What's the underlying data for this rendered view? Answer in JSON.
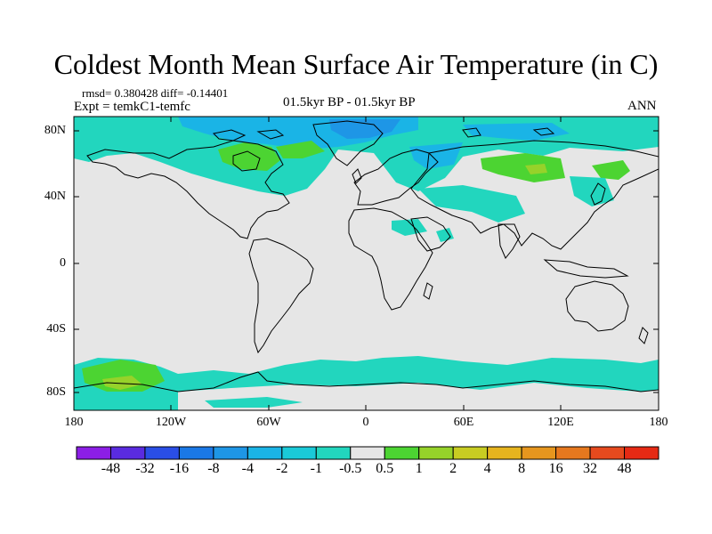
{
  "title": "Coldest Month Mean Surface Air Temperature (in C)",
  "stats": "rmsd= 0.380428 diff= -0.14401",
  "experiment": "Expt = temkC1-temfc",
  "period": "01.5kyr BP - 01.5kyr BP",
  "season": "ANN",
  "lat_labels": [
    "80N",
    "40N",
    "0",
    "40S",
    "80S"
  ],
  "lon_labels": [
    "180",
    "120W",
    "60W",
    "0",
    "60E",
    "120E",
    "180"
  ],
  "colorbar": {
    "labels": [
      "-48",
      "-32",
      "-16",
      "-8",
      "-4",
      "-2",
      "-1",
      "-0.5",
      "0.5",
      "1",
      "2",
      "4",
      "8",
      "16",
      "32",
      "48"
    ],
    "colors": [
      "#8c1ee6",
      "#5a2be0",
      "#2a4ee6",
      "#1a78e6",
      "#1e96e6",
      "#1ab4e6",
      "#1acad8",
      "#22d6be",
      "#e6e6e6",
      "#4cd432",
      "#96d22a",
      "#c8cc22",
      "#e6b41e",
      "#e6961e",
      "#e6781e",
      "#e64a1e",
      "#e62a14"
    ]
  },
  "colors": {
    "land_bg": "#e6e6e6",
    "cyan": "#22d6be",
    "light_blue": "#1ab4e6",
    "blue": "#1e96e6",
    "green": "#4cd432",
    "yellow_green": "#96d22a"
  }
}
